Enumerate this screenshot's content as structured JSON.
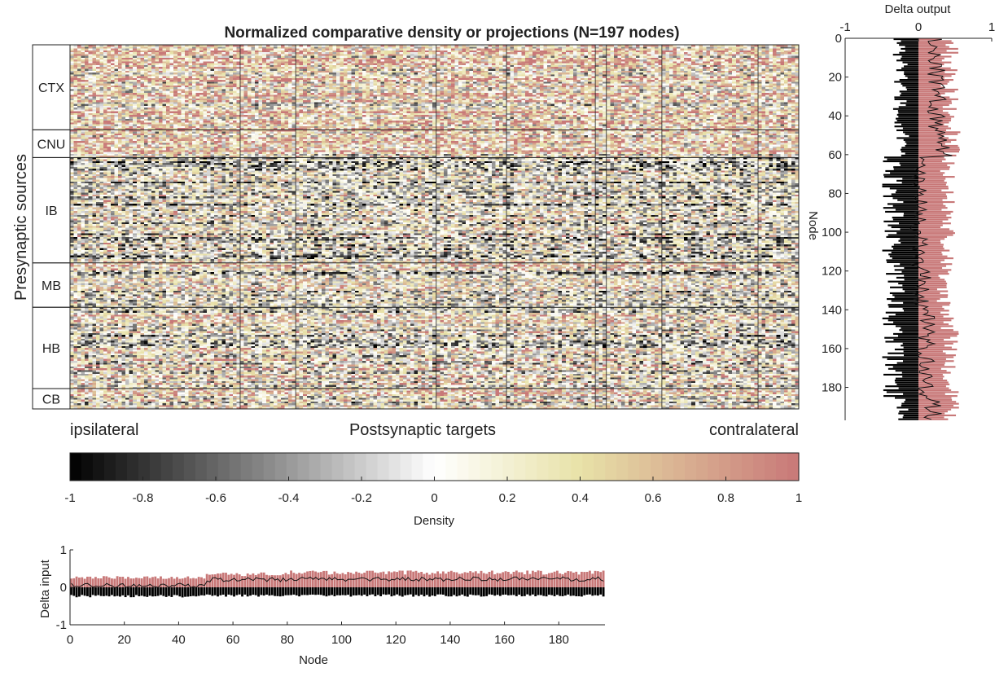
{
  "chart_data": [
    {
      "type": "heatmap",
      "title": "Normalized comparative density or projections (N=197 nodes)",
      "ylabel": "Presynaptic sources",
      "xlabel": "Postsynaptic targets",
      "xlabel_left": "ipsilateral",
      "xlabel_right": "contralateral",
      "n_nodes": 197,
      "value_range": [
        -1,
        1
      ],
      "colormap": [
        "#000000",
        "#ffffff",
        "#e8e2a8",
        "#c87878"
      ],
      "regions": [
        {
          "name": "CTX",
          "start": 0,
          "end": 46
        },
        {
          "name": "CNU",
          "start": 46,
          "end": 61
        },
        {
          "name": "IB",
          "start": 61,
          "end": 118
        },
        {
          "name": "MB",
          "start": 118,
          "end": 142
        },
        {
          "name": "HB",
          "start": 142,
          "end": 186
        },
        {
          "name": "CB",
          "start": 186,
          "end": 197
        }
      ],
      "row_means_approx": [
        {
          "range": [
            0,
            46
          ],
          "mean": 0.3
        },
        {
          "range": [
            46,
            61
          ],
          "mean": 0.45
        },
        {
          "range": [
            61,
            118
          ],
          "mean": -0.05
        },
        {
          "range": [
            118,
            142
          ],
          "mean": 0.05
        },
        {
          "range": [
            142,
            186
          ],
          "mean": 0.1
        },
        {
          "range": [
            186,
            197
          ],
          "mean": 0.25
        }
      ],
      "colorbar": {
        "label": "Density",
        "ticks": [
          -1,
          -0.8,
          -0.6,
          -0.4,
          -0.2,
          0,
          0.2,
          0.4,
          0.6,
          0.8,
          1
        ],
        "tick_labels": [
          "-1",
          "-0.8",
          "-0.6",
          "-0.4",
          "-0.2",
          "0",
          "0.2",
          "0.4",
          "0.6",
          "0.8",
          "1"
        ]
      }
    },
    {
      "type": "bar",
      "orientation": "horizontal",
      "title": "Delta output",
      "xlabel": "Delta output",
      "ylabel": "Node",
      "xlim": [
        -1,
        1
      ],
      "ylim": [
        0,
        197
      ],
      "x_ticks": [
        -1,
        0,
        1
      ],
      "x_tick_labels": [
        "-1",
        "0",
        "1"
      ],
      "y_ticks": [
        0,
        20,
        40,
        60,
        80,
        100,
        120,
        140,
        160,
        180
      ],
      "y_tick_labels": [
        "0",
        "20",
        "40",
        "60",
        "80",
        "100",
        "120",
        "140",
        "160",
        "180"
      ],
      "positive_color": "#c87878",
      "negative_color": "#000000",
      "segments_approx": [
        {
          "range": [
            0,
            46
          ],
          "pos": 0.55,
          "neg": -0.35,
          "line": 0.25
        },
        {
          "range": [
            46,
            61
          ],
          "pos": 0.6,
          "neg": -0.3,
          "line": 0.35
        },
        {
          "range": [
            61,
            118
          ],
          "pos": 0.5,
          "neg": -0.5,
          "line": 0.0
        },
        {
          "range": [
            118,
            142
          ],
          "pos": 0.45,
          "neg": -0.45,
          "line": 0.05
        },
        {
          "range": [
            142,
            186
          ],
          "pos": 0.55,
          "neg": -0.5,
          "line": 0.1
        },
        {
          "range": [
            186,
            197
          ],
          "pos": 0.6,
          "neg": -0.3,
          "line": 0.2
        }
      ]
    },
    {
      "type": "bar",
      "title": "Delta input",
      "xlabel": "Node",
      "ylabel": "Delta input",
      "xlim": [
        0,
        197
      ],
      "ylim": [
        -1,
        1
      ],
      "x_ticks": [
        0,
        20,
        40,
        60,
        80,
        100,
        120,
        140,
        160,
        180
      ],
      "x_tick_labels": [
        "0",
        "20",
        "40",
        "60",
        "80",
        "100",
        "120",
        "140",
        "160",
        "180"
      ],
      "y_ticks": [
        -1,
        0,
        1
      ],
      "y_tick_labels": [
        "-1",
        "0",
        "1"
      ],
      "positive_color": "#c87878",
      "negative_color": "#000000",
      "segments_approx": [
        {
          "range": [
            0,
            50
          ],
          "pos": 0.3,
          "neg": -0.27,
          "line": 0.05
        },
        {
          "range": [
            50,
            80
          ],
          "pos": 0.4,
          "neg": -0.25,
          "line": 0.2
        },
        {
          "range": [
            80,
            197
          ],
          "pos": 0.45,
          "neg": -0.25,
          "line": 0.22
        }
      ]
    }
  ]
}
